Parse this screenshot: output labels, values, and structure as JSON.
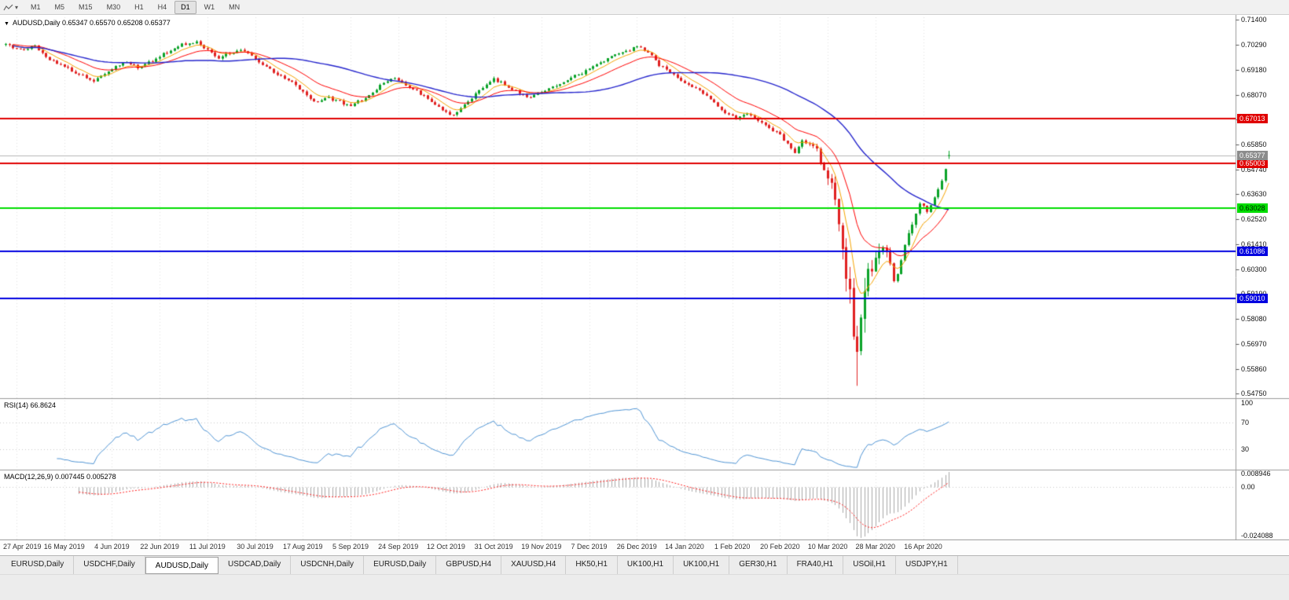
{
  "toolbar": {
    "timeframes": [
      "M1",
      "M5",
      "M15",
      "M30",
      "H1",
      "H4",
      "D1",
      "W1",
      "MN"
    ],
    "active": "D1"
  },
  "chart": {
    "symbol_line": {
      "symbol": "AUDUSD,Daily",
      "open": "0.65347",
      "high": "0.65570",
      "low": "0.65208",
      "close": "0.65377"
    },
    "price_axis": [
      "0.71400",
      "0.70290",
      "0.69180",
      "0.68070",
      "0.66960",
      "0.65850",
      "0.64740",
      "0.63630",
      "0.62520",
      "0.61410",
      "0.60300",
      "0.59190",
      "0.58080",
      "0.56970",
      "0.55860",
      "0.54750"
    ],
    "current_price": {
      "value": "0.65377",
      "color": "#8c8c8c"
    },
    "hlines": [
      {
        "price": 0.67013,
        "label": "0.67013",
        "color": "#e00000",
        "text": "#ffffff"
      },
      {
        "price": 0.65003,
        "label": "0.65003",
        "color": "#e00000",
        "text": "#ffffff"
      },
      {
        "price": 0.63028,
        "label": "0.63028",
        "color": "#00dd00",
        "text": "#002000"
      },
      {
        "price": 0.61086,
        "label": "0.61086",
        "color": "#0000e0",
        "text": "#ffffff"
      },
      {
        "price": 0.5901,
        "label": "0.59010",
        "color": "#0000e0",
        "text": "#ffffff"
      }
    ],
    "date_axis": [
      "27 Apr 2019",
      "16 May 2019",
      "4 Jun 2019",
      "22 Jun 2019",
      "11 Jul 2019",
      "30 Jul 2019",
      "17 Aug 2019",
      "5 Sep 2019",
      "24 Sep 2019",
      "12 Oct 2019",
      "31 Oct 2019",
      "19 Nov 2019",
      "7 Dec 2019",
      "26 Dec 2019",
      "14 Jan 2020",
      "1 Feb 2020",
      "20 Feb 2020",
      "10 Mar 2020",
      "28 Mar 2020",
      "16 Apr 2020"
    ]
  },
  "rsi": {
    "title": "RSI(14) 66.8624",
    "levels": [
      "100",
      "70",
      "30"
    ]
  },
  "macd": {
    "title": "MACD(12,26,9) 0.007445 0.005278",
    "axis_labels": [
      "0.008946",
      "0.00",
      "-0.024088"
    ]
  },
  "tabs": [
    "EURUSD,Daily",
    "USDCHF,Daily",
    "AUDUSD,Daily",
    "USDCAD,Daily",
    "USDCNH,Daily",
    "EURUSD,Daily",
    "GBPUSD,H4",
    "XAUUSD,H4",
    "HK50,H1",
    "UK100,H1",
    "UK100,H1",
    "GER30,H1",
    "FRA40,H1",
    "USOil,H1",
    "USDJPY,H1"
  ],
  "active_tab_index": 2,
  "colors": {
    "candle_up": "#0aa228",
    "candle_down": "#e02020",
    "ma_fast": "#f5a300",
    "ma_mid": "#ff0000",
    "ma_slow": "#2424cc",
    "rsi_line": "#4f94d4",
    "macd_hist": "#a8a8a8",
    "macd_signal": "#ff2020",
    "grid": "#e2e2e2",
    "level_dotted": "#c8c8c8",
    "current_price_line": "#b4b4b4"
  },
  "chart_data": {
    "type": "candlestick",
    "symbol": "AUDUSD",
    "timeframe": "Daily",
    "ohlc_current": {
      "open": 0.65347,
      "high": 0.6557,
      "low": 0.65208,
      "close": 0.65377
    },
    "horizontal_levels": [
      0.67013,
      0.65003,
      0.63028,
      0.61086,
      0.5901
    ],
    "price_axis_range": {
      "top": 0.7152,
      "bottom": 0.5462
    },
    "lowest_low": {
      "index": 232,
      "price": 0.551
    },
    "rsi_current": 66.8624,
    "macd_current": {
      "macd": 0.007445,
      "signal": 0.005278,
      "histogram_max": 0.008946,
      "histogram_min": -0.024088
    },
    "moving_averages": [
      {
        "name": "fast",
        "type": "ema",
        "period": 7
      },
      {
        "name": "mid",
        "type": "ema",
        "period": 18
      },
      {
        "name": "slow",
        "type": "sma",
        "period": 50
      }
    ],
    "price_path_anchors": [
      [
        0,
        0.703
      ],
      [
        4,
        0.7008
      ],
      [
        8,
        0.7022
      ],
      [
        12,
        0.6965
      ],
      [
        16,
        0.693
      ],
      [
        20,
        0.6897
      ],
      [
        24,
        0.6872
      ],
      [
        28,
        0.691
      ],
      [
        32,
        0.6952
      ],
      [
        36,
        0.693
      ],
      [
        40,
        0.6958
      ],
      [
        44,
        0.6998
      ],
      [
        48,
        0.7032
      ],
      [
        52,
        0.7042
      ],
      [
        55,
        0.7005
      ],
      [
        58,
        0.6972
      ],
      [
        61,
        0.6992
      ],
      [
        64,
        0.7012
      ],
      [
        67,
        0.6985
      ],
      [
        70,
        0.6942
      ],
      [
        73,
        0.6908
      ],
      [
        76,
        0.6882
      ],
      [
        79,
        0.6848
      ],
      [
        82,
        0.6802
      ],
      [
        85,
        0.6772
      ],
      [
        88,
        0.6792
      ],
      [
        91,
        0.6775
      ],
      [
        94,
        0.6758
      ],
      [
        97,
        0.6785
      ],
      [
        100,
        0.6822
      ],
      [
        103,
        0.6858
      ],
      [
        106,
        0.6885
      ],
      [
        109,
        0.6852
      ],
      [
        112,
        0.6822
      ],
      [
        115,
        0.6788
      ],
      [
        118,
        0.6752
      ],
      [
        121,
        0.6712
      ],
      [
        124,
        0.6748
      ],
      [
        127,
        0.6795
      ],
      [
        130,
        0.6842
      ],
      [
        133,
        0.6875
      ],
      [
        136,
        0.6855
      ],
      [
        139,
        0.6822
      ],
      [
        142,
        0.6792
      ],
      [
        145,
        0.6812
      ],
      [
        148,
        0.684
      ],
      [
        151,
        0.6858
      ],
      [
        154,
        0.6885
      ],
      [
        157,
        0.6905
      ],
      [
        160,
        0.6932
      ],
      [
        163,
        0.6958
      ],
      [
        166,
        0.6982
      ],
      [
        169,
        0.7
      ],
      [
        172,
        0.7022
      ],
      [
        175,
        0.6995
      ],
      [
        178,
        0.6938
      ],
      [
        181,
        0.6902
      ],
      [
        184,
        0.6872
      ],
      [
        187,
        0.6845
      ],
      [
        190,
        0.6812
      ],
      [
        193,
        0.6775
      ],
      [
        196,
        0.6728
      ],
      [
        199,
        0.67
      ],
      [
        202,
        0.6718
      ],
      [
        205,
        0.6692
      ],
      [
        208,
        0.6662
      ],
      [
        211,
        0.6625
      ],
      [
        213,
        0.6588
      ],
      [
        215,
        0.6548
      ],
      [
        217,
        0.661
      ],
      [
        219,
        0.6582
      ],
      [
        221,
        0.6558
      ],
      [
        223,
        0.6482
      ],
      [
        225,
        0.6385
      ],
      [
        226,
        0.6325
      ],
      [
        227,
        0.6245
      ],
      [
        228,
        0.6148
      ],
      [
        229,
        0.6025
      ],
      [
        230,
        0.5905
      ],
      [
        231,
        0.5762
      ],
      [
        232,
        0.5705
      ],
      [
        233,
        0.5812
      ],
      [
        234,
        0.5898
      ],
      [
        235,
        0.5988
      ],
      [
        237,
        0.6088
      ],
      [
        239,
        0.6148
      ],
      [
        240,
        0.6112
      ],
      [
        241,
        0.6052
      ],
      [
        242,
        0.5992
      ],
      [
        243,
        0.6012
      ],
      [
        244,
        0.6068
      ],
      [
        245,
        0.6128
      ],
      [
        246,
        0.6178
      ],
      [
        247,
        0.6228
      ],
      [
        248,
        0.6278
      ],
      [
        249,
        0.6328
      ],
      [
        250,
        0.6308
      ],
      [
        251,
        0.6282
      ],
      [
        252,
        0.6312
      ],
      [
        253,
        0.6348
      ],
      [
        254,
        0.6388
      ],
      [
        255,
        0.6428
      ],
      [
        256,
        0.6478
      ],
      [
        257,
        0.65377
      ]
    ]
  }
}
